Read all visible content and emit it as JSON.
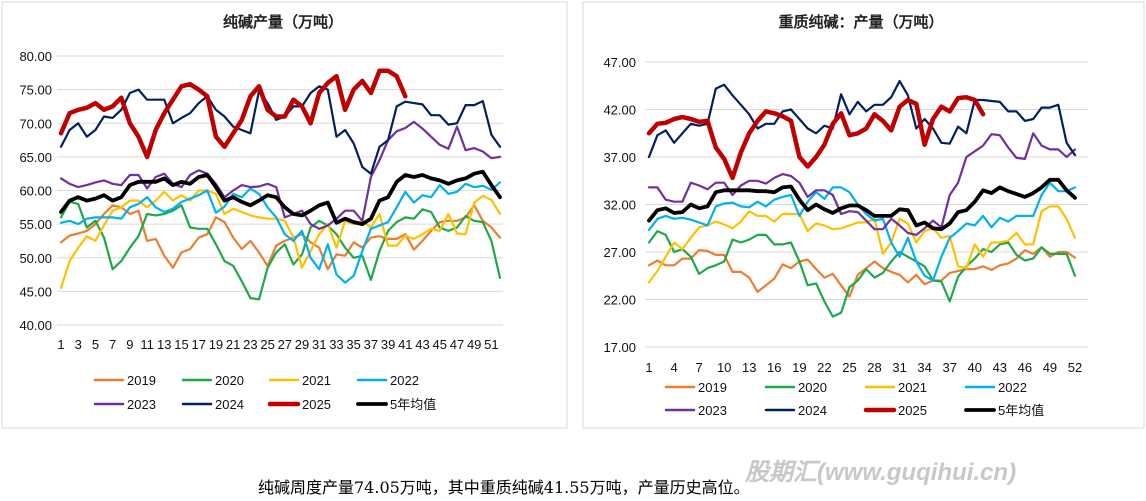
{
  "chart_data": [
    {
      "type": "line",
      "title": "纯碱产量（万吨）",
      "ylim": [
        40,
        80
      ],
      "yticks": [
        "40.00",
        "45.00",
        "50.00",
        "55.00",
        "60.00",
        "65.00",
        "70.00",
        "75.00",
        "80.00"
      ],
      "xticks": [
        "1",
        "3",
        "5",
        "7",
        "9",
        "11",
        "13",
        "15",
        "17",
        "19",
        "21",
        "23",
        "25",
        "27",
        "29",
        "31",
        "33",
        "35",
        "37",
        "39",
        "41",
        "43",
        "45",
        "47",
        "49",
        "51"
      ],
      "grid": true,
      "legend": "bottom",
      "series": [
        {
          "name": "2019",
          "color": "#ED7D31",
          "values": [
            52.3,
            53.3,
            53.6,
            54,
            55,
            56.5,
            57.8,
            57.5,
            56.5,
            57,
            52.5,
            52.8,
            50.3,
            48.5,
            50.8,
            51.3,
            53,
            53.5,
            56,
            55.3,
            53,
            51.3,
            52.5,
            50.8,
            48.8,
            51.8,
            52.5,
            53,
            53.5,
            52.3,
            51.5,
            48.3,
            50.5,
            50.3,
            52.3,
            51.5,
            53,
            53.2,
            52.8,
            52.8,
            53.5,
            51.2,
            52.5,
            54,
            55.3,
            55.5,
            55.5,
            56,
            57.8,
            55.5,
            54.5,
            53
          ]
        },
        {
          "name": "2020",
          "color": "#1FA84A",
          "values": [
            56,
            58.3,
            58,
            54.5,
            55.5,
            53,
            48.3,
            49.5,
            51.5,
            53.2,
            56.5,
            56.3,
            56.5,
            57,
            57.8,
            54.5,
            54.3,
            54.3,
            52,
            49.5,
            48.8,
            46.5,
            44,
            43.8,
            48.5,
            50.8,
            52,
            49,
            50.5,
            54.5,
            55.5,
            54.8,
            53.5,
            51.5,
            50,
            50.3,
            46.7,
            51,
            54,
            55.3,
            56,
            55.8,
            57.2,
            56.8,
            54.5,
            54,
            54.5,
            56.2,
            55.5,
            55.3,
            52.5,
            47
          ]
        },
        {
          "name": "2021",
          "color": "#FFC000",
          "values": [
            45.5,
            49.5,
            51.5,
            53.2,
            52.5,
            54.8,
            57,
            57.5,
            58.5,
            58.5,
            57.5,
            58.5,
            59.8,
            58.5,
            59.3,
            58.5,
            60,
            60,
            59.5,
            56.5,
            57.3,
            56.8,
            56.3,
            56,
            55.8,
            55.8,
            55.5,
            53,
            48.5,
            51,
            53.5,
            55,
            51.5,
            55.5,
            55,
            55.5,
            54.5,
            56.5,
            51.8,
            51.8,
            53.3,
            52.8,
            53.5,
            54.3,
            54,
            56.5,
            53.6,
            53.5,
            58.2,
            59.2,
            58.6,
            56.5
          ]
        },
        {
          "name": "2022",
          "color": "#00B0F0",
          "values": [
            55.2,
            55.5,
            55,
            55.8,
            56,
            56,
            56,
            55.8,
            57.5,
            58,
            59,
            57.5,
            56.8,
            57.3,
            58.3,
            58.8,
            59.3,
            60,
            56.7,
            57.6,
            59.5,
            59,
            60.3,
            59.5,
            57.5,
            56,
            53.5,
            52.5,
            54,
            50,
            48.3,
            52,
            47.5,
            46.3,
            47.3,
            51,
            54.3,
            54.8,
            55.3,
            57.5,
            59.8,
            58.2,
            59.3,
            59,
            60.8,
            59.5,
            59.8,
            61,
            60.5,
            60.7,
            60.1,
            61.2
          ]
        },
        {
          "name": "2023",
          "color": "#7030A0",
          "values": [
            61.8,
            61,
            60.5,
            60.8,
            61.2,
            61.5,
            61,
            60.8,
            62.3,
            62.3,
            60.3,
            62,
            62.5,
            61,
            60.5,
            62.3,
            63,
            62.5,
            61,
            59,
            60,
            60.8,
            60.5,
            60.6,
            61,
            60.5,
            56,
            56.5,
            57,
            55,
            54.3,
            54.8,
            55.8,
            57,
            57,
            55.5,
            62,
            64.5,
            67.5,
            68.8,
            69.3,
            70.2,
            69.2,
            68,
            66.8,
            66.2,
            69.5,
            66,
            66.3,
            65.8,
            64.8,
            65
          ]
        },
        {
          "name": "2024",
          "color": "#002060",
          "values": [
            66.5,
            69,
            70,
            68,
            69,
            71,
            70.8,
            72,
            74.5,
            75,
            73.5,
            73.5,
            73.5,
            70,
            70.8,
            71.5,
            73,
            74,
            72,
            71,
            69.5,
            69,
            68.5,
            74.8,
            73,
            70.5,
            71,
            72.5,
            72.5,
            74.5,
            75.5,
            75,
            68,
            69,
            67,
            63.5,
            62.5,
            66.5,
            67.5,
            72.5,
            73.2,
            73,
            72.8,
            71.2,
            71.2,
            69.8,
            70,
            72.7,
            72.7,
            73.3,
            68.3,
            66.5
          ]
        },
        {
          "name": "2025",
          "color": "#C00000",
          "values": [
            68.5,
            71.5,
            72,
            72.3,
            73,
            72,
            72.5,
            73.8,
            70,
            68,
            65,
            69,
            71.5,
            73.5,
            75.5,
            75.8,
            75,
            74,
            68,
            66.5,
            68.5,
            70.5,
            74,
            75.5,
            72,
            71,
            71,
            73.5,
            72.5,
            70,
            74.5,
            76,
            77,
            72,
            75,
            76.3,
            74.5,
            77.8,
            77.8,
            77,
            74
          ]
        },
        {
          "name": "5年均值",
          "color": "#000000",
          "values": [
            56.8,
            58.5,
            59,
            58.5,
            58.8,
            59.3,
            58.5,
            59,
            60.8,
            61.3,
            61.3,
            61.3,
            61.8,
            60.8,
            61.3,
            61,
            62,
            62.3,
            60.5,
            58.5,
            59,
            58.3,
            57.8,
            58.5,
            59.3,
            59,
            57.5,
            56.5,
            56.3,
            57,
            57.8,
            58.2,
            55.2,
            55.8,
            55.3,
            55,
            55.8,
            58.5,
            59,
            61.3,
            62.3,
            62,
            62.3,
            61.8,
            61.5,
            61,
            61.5,
            61.8,
            62.5,
            62.8,
            60.8,
            59
          ]
        }
      ]
    },
    {
      "type": "line",
      "title": "重质纯碱：产量（万吨）",
      "ylim": [
        17,
        47
      ],
      "yticks": [
        "17.00",
        "22.00",
        "27.00",
        "32.00",
        "37.00",
        "42.00",
        "47.00"
      ],
      "xticks": [
        "1",
        "4",
        "7",
        "10",
        "13",
        "16",
        "19",
        "22",
        "25",
        "28",
        "31",
        "34",
        "37",
        "40",
        "43",
        "46",
        "49",
        "52"
      ],
      "grid": true,
      "legend": "bottom",
      "series": [
        {
          "name": "2019",
          "color": "#ED7D31",
          "values": [
            25.6,
            26.1,
            25.6,
            25.6,
            26.3,
            26.3,
            27.2,
            27.1,
            26.7,
            26.7,
            24.9,
            24.9,
            24.3,
            22.8,
            23.5,
            24.2,
            25.7,
            25.3,
            26,
            26.2,
            25.2,
            24.3,
            24.7,
            23.5,
            22.3,
            24.6,
            25.3,
            26,
            25.3,
            24.9,
            24.6,
            23.8,
            24.6,
            23.6,
            24,
            24,
            24.8,
            25,
            25.2,
            25.2,
            25.5,
            25.1,
            25.6,
            25.8,
            26.3,
            27.2,
            26.8,
            27.5,
            26.5,
            27,
            27,
            26.4
          ]
        },
        {
          "name": "2020",
          "color": "#1FA84A",
          "values": [
            28,
            29.2,
            28.8,
            27,
            27.3,
            26.5,
            24.7,
            25.3,
            25.6,
            26,
            28.3,
            28,
            28.3,
            28.8,
            28.8,
            27.8,
            27.8,
            28,
            26,
            23.5,
            23.7,
            21.8,
            20.2,
            20.6,
            23.3,
            24,
            25.2,
            24.3,
            24.8,
            26,
            27,
            26.5,
            26,
            25.5,
            24,
            23.9,
            21.8,
            24.4,
            25.5,
            26.3,
            27.3,
            27,
            27.8,
            28,
            26.7,
            26.1,
            26.3,
            27.5,
            26.8,
            26.8,
            26.8,
            24.5
          ]
        },
        {
          "name": "2021",
          "color": "#FFC000",
          "values": [
            23.8,
            25,
            26.5,
            28,
            27.3,
            28.5,
            29.6,
            29.8,
            30.2,
            29.9,
            29.5,
            30.2,
            31.3,
            30.8,
            30.8,
            30.2,
            31,
            31,
            31,
            29.2,
            30,
            29.8,
            29.4,
            29.5,
            29.8,
            30.1,
            30.1,
            30.5,
            26.8,
            28,
            30.5,
            30,
            28,
            29.2,
            29.5,
            28.5,
            28.7,
            25.5,
            25.3,
            27.8,
            26.5,
            28,
            28,
            28.2,
            29,
            27.8,
            27.8,
            31.3,
            31.8,
            31.8,
            30.5,
            28.5
          ]
        },
        {
          "name": "2022",
          "color": "#00B0F0",
          "values": [
            29.3,
            30.5,
            30.8,
            30.5,
            30.6,
            30.4,
            30.1,
            29.8,
            31.8,
            32.1,
            32.2,
            31.8,
            31.7,
            32.3,
            31.8,
            32.5,
            32.8,
            33,
            30.8,
            32.3,
            33.3,
            32.6,
            33.8,
            33.8,
            33.3,
            32,
            31,
            30.3,
            30.5,
            28,
            26.5,
            28.5,
            26,
            24.5,
            24,
            26.5,
            28.5,
            29.2,
            30,
            29.8,
            30.8,
            29.6,
            30.6,
            30.2,
            30.8,
            30.8,
            30.8,
            33,
            34.3,
            33.4,
            33.4,
            33.8
          ]
        },
        {
          "name": "2023",
          "color": "#7030A0",
          "values": [
            33.8,
            33.8,
            32.5,
            32.3,
            32.3,
            34.3,
            34,
            33.6,
            34.3,
            34.3,
            33,
            34,
            34.5,
            34.5,
            34.2,
            34.8,
            35.2,
            35,
            34.3,
            32.8,
            33.5,
            33.5,
            33,
            31,
            31.3,
            31.2,
            30.3,
            29.4,
            29.4,
            30.5,
            29.8,
            29,
            28.8,
            29.5,
            30.3,
            29.6,
            33,
            34.3,
            37,
            37.6,
            38.2,
            39.4,
            39.3,
            38,
            36.9,
            36.8,
            39.5,
            38.2,
            37.8,
            37.8,
            37,
            37.8
          ]
        },
        {
          "name": "2024",
          "color": "#002060",
          "values": [
            37,
            39.3,
            39.8,
            38.5,
            39.5,
            40.5,
            40.3,
            40.5,
            44.2,
            44.6,
            43.5,
            42.5,
            41.5,
            40,
            40.5,
            40.5,
            41.8,
            42,
            41,
            40,
            39.5,
            40.3,
            40,
            43.6,
            41.5,
            42.8,
            41.8,
            42.5,
            42.5,
            43.3,
            45,
            43.5,
            40,
            41,
            40,
            38.5,
            38.4,
            40.2,
            39.5,
            43,
            43,
            42.9,
            42.8,
            41.8,
            41.8,
            40.8,
            41,
            42.2,
            42.2,
            42.5,
            38.5,
            37.2
          ]
        },
        {
          "name": "2025",
          "color": "#C00000",
          "values": [
            39.5,
            40.5,
            40.6,
            41,
            41.2,
            41,
            40.7,
            40.8,
            38,
            36.8,
            34.8,
            37.5,
            39.5,
            40.8,
            41.8,
            41.6,
            41.3,
            40.8,
            37,
            36,
            37,
            38.3,
            40.5,
            41.6,
            39.3,
            39.5,
            40,
            41.5,
            40.8,
            39.8,
            42.3,
            43,
            42.6,
            38.3,
            41,
            42.3,
            41.8,
            43.2,
            43.3,
            43,
            41.5
          ]
        },
        {
          "name": "5年均值",
          "color": "#000000",
          "values": [
            30.3,
            31.4,
            31.6,
            31.1,
            31.2,
            32,
            31.6,
            31.8,
            33.3,
            33.5,
            33.5,
            33.5,
            33.5,
            33.4,
            33.4,
            33.3,
            33.8,
            33.9,
            32.5,
            31.4,
            32,
            31.5,
            31.1,
            31.6,
            31.9,
            31.9,
            31.4,
            30.8,
            30.8,
            30.8,
            31.5,
            31.4,
            29.8,
            30.1,
            29.5,
            29.4,
            30,
            31.2,
            31.4,
            32.3,
            33.5,
            33.2,
            33.8,
            33.4,
            33.1,
            32.8,
            33.2,
            33.8,
            34.6,
            34.6,
            33.5,
            32.7
          ]
        }
      ]
    }
  ],
  "caption": "纯碱周度产量74.05万吨，其中重质纯碱41.55万吨，产量历史高位。",
  "watermark": "股期汇(www.guqihui.cn)"
}
